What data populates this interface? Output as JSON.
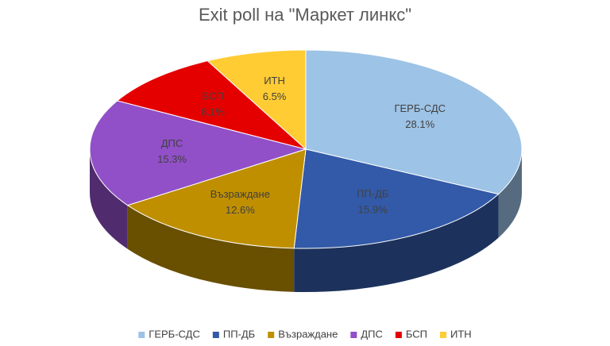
{
  "chart_data": {
    "type": "pie3d",
    "title": "Exit poll на \"Маркет линкс\"",
    "categories": [
      "ГЕРБ-СДС",
      "ПП-ДБ",
      "Възраждане",
      "ДПС",
      "БСП",
      "ИТН"
    ],
    "values": [
      28.1,
      15.9,
      12.6,
      15.3,
      8.1,
      6.5
    ],
    "value_labels": [
      "28.1%",
      "15.9%",
      "12.6%",
      "15.3%",
      "8.1%",
      "6.5%"
    ],
    "colors": [
      "#9dc3e6",
      "#335aa8",
      "#bf8f00",
      "#9150c8",
      "#e50000",
      "#ffcc33"
    ],
    "legend": "bottom"
  }
}
